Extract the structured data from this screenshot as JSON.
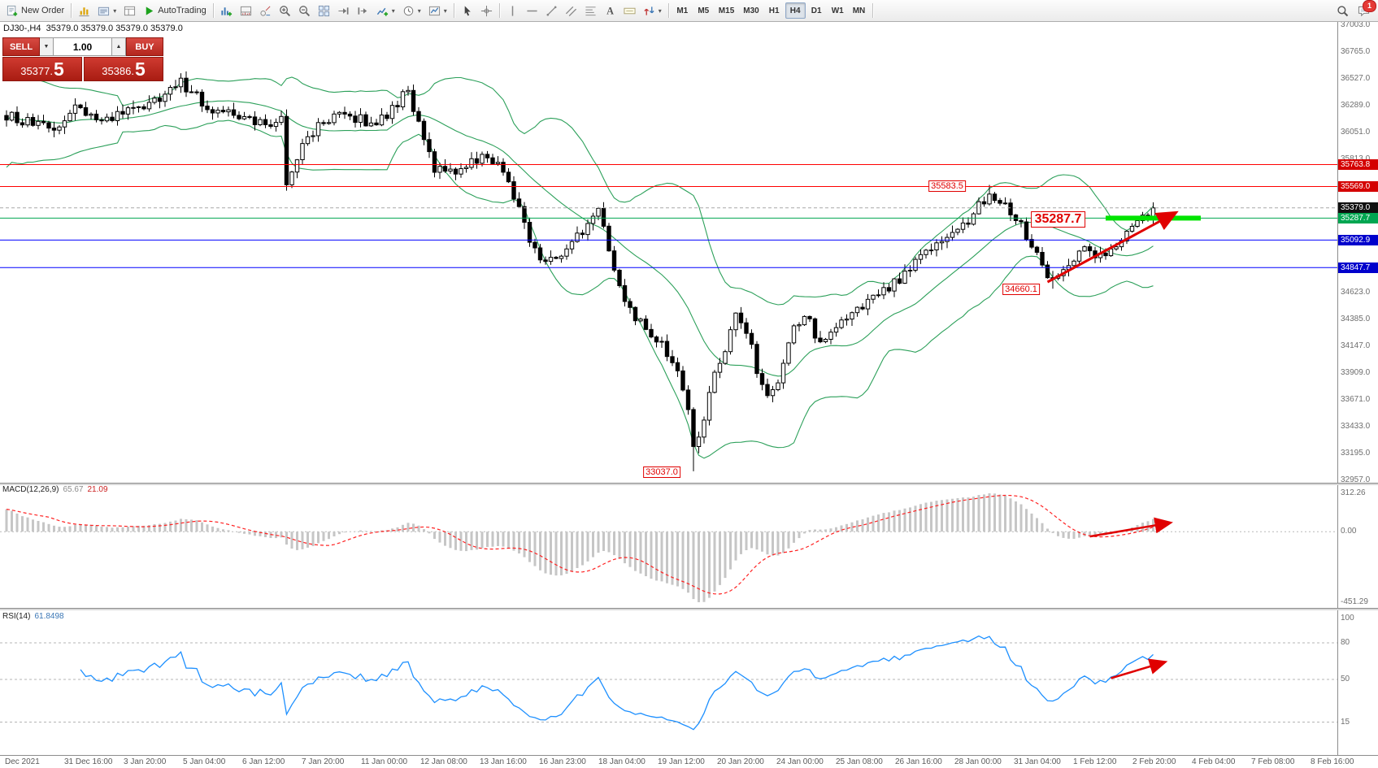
{
  "toolbar": {
    "new_order_label": "New Order",
    "autotrading_label": "AutoTrading",
    "timeframes": [
      "M1",
      "M5",
      "M15",
      "M30",
      "H1",
      "H4",
      "D1",
      "W1",
      "MN"
    ],
    "active_timeframe": "H4",
    "notification_badge": "1",
    "items": [
      {
        "type": "button",
        "name": "new-order",
        "icon": "new-order",
        "label": "New Order"
      },
      {
        "type": "sep"
      },
      {
        "type": "icon",
        "name": "new-chart",
        "icon": "new-chart"
      },
      {
        "type": "icon",
        "name": "profiles",
        "icon": "profiles",
        "dropdown": true
      },
      {
        "type": "icon",
        "name": "data-window",
        "icon": "data-window"
      },
      {
        "type": "button",
        "name": "autotrading",
        "icon": "autotrading",
        "label": "AutoTrading"
      },
      {
        "type": "sep"
      },
      {
        "type": "icon",
        "name": "indicators",
        "icon": "indicators"
      },
      {
        "type": "icon",
        "name": "indicator-windows",
        "icon": "indicator-windows"
      },
      {
        "type": "icon",
        "name": "objects-list",
        "icon": "objects"
      },
      {
        "type": "icon",
        "name": "zoom-in",
        "icon": "zoom-in"
      },
      {
        "type": "icon",
        "name": "zoom-out",
        "icon": "zoom-out"
      },
      {
        "type": "icon",
        "name": "tile-windows",
        "icon": "tile-windows"
      },
      {
        "type": "icon",
        "name": "auto-scroll",
        "icon": "auto-scroll"
      },
      {
        "type": "icon",
        "name": "chart-shift",
        "icon": "chart-shift"
      },
      {
        "type": "icon",
        "name": "new-chart-plus",
        "icon": "new-chart-plus",
        "dropdown": true
      },
      {
        "type": "icon",
        "name": "periods",
        "icon": "clock",
        "dropdown": true
      },
      {
        "type": "icon",
        "name": "templates",
        "icon": "template",
        "dropdown": true
      },
      {
        "type": "sep"
      },
      {
        "type": "icon",
        "name": "cursor",
        "icon": "cursor"
      },
      {
        "type": "icon",
        "name": "crosshair",
        "icon": "crosshair"
      },
      {
        "type": "sep"
      },
      {
        "type": "icon",
        "name": "vertical-line",
        "icon": "vline"
      },
      {
        "type": "icon",
        "name": "horizontal-line",
        "icon": "hline"
      },
      {
        "type": "icon",
        "name": "trendline",
        "icon": "trendline"
      },
      {
        "type": "icon",
        "name": "equidistant-channel",
        "icon": "channel"
      },
      {
        "type": "icon",
        "name": "fibonacci",
        "icon": "fibo"
      },
      {
        "type": "icon",
        "name": "text",
        "icon": "text"
      },
      {
        "type": "icon",
        "name": "text-label",
        "icon": "label"
      },
      {
        "type": "icon",
        "name": "arrows",
        "icon": "arrows",
        "dropdown": true
      },
      {
        "type": "sep"
      },
      {
        "type": "timeframes"
      },
      {
        "type": "sep"
      }
    ],
    "right": [
      {
        "name": "search",
        "icon": "search"
      },
      {
        "name": "chat",
        "icon": "chat",
        "badge": "1"
      }
    ]
  },
  "chart": {
    "symbol_period": "DJ30-,H4",
    "ohlc": "35379.0 35379.0 35379.0 35379.0"
  },
  "trade_panel": {
    "sell_label": "SELL",
    "buy_label": "BUY",
    "volume": "1.00",
    "sell_price": "35377.",
    "sell_price_big": "5",
    "buy_price": "35386.",
    "buy_price_big": "5"
  },
  "chart_data": {
    "type": "candlestick",
    "symbol": "DJ30-",
    "timeframe": "H4",
    "bars": 218,
    "current_price": 35379.0,
    "price_axis": {
      "top_price": 37003.0,
      "bottom_price": 32957.0,
      "labels": [
        37003.0,
        36765.0,
        36527.0,
        36289.0,
        36051.0,
        35813.0,
        34623.0,
        34385.0,
        34147.0,
        33909.0,
        33671.0,
        33433.0,
        33195.0,
        32957.0
      ]
    },
    "price_lines": [
      {
        "price": 35763.8,
        "label": "35763.8",
        "color": "#ff0000",
        "badge": "#d40000",
        "style": "solid"
      },
      {
        "price": 35569.0,
        "label": "35569.0",
        "color": "#ff0000",
        "badge": "#d40000",
        "style": "solid"
      },
      {
        "price": 35379.0,
        "label": "35379.0",
        "color": "#a8a8a8",
        "badge": "#101010",
        "style": "dashed"
      },
      {
        "price": 35287.7,
        "label": "35287.7",
        "color": "#00a651",
        "badge": "#00a651",
        "style": "solid"
      },
      {
        "price": 35092.9,
        "label": "35092.9",
        "color": "#0000ff",
        "badge": "#0000cc",
        "style": "solid"
      },
      {
        "price": 34847.7,
        "label": "34847.7",
        "color": "#0000ff",
        "badge": "#0000cc",
        "style": "solid"
      }
    ],
    "price_path": [
      [
        0,
        36200
      ],
      [
        5,
        36120
      ],
      [
        9,
        36060
      ],
      [
        13,
        36280
      ],
      [
        18,
        36130
      ],
      [
        24,
        36260
      ],
      [
        28,
        36310
      ],
      [
        33,
        36500
      ],
      [
        38,
        36280
      ],
      [
        43,
        36200
      ],
      [
        48,
        36120
      ],
      [
        52,
        36180
      ],
      [
        53,
        35620
      ],
      [
        56,
        35950
      ],
      [
        60,
        36150
      ],
      [
        64,
        36200
      ],
      [
        70,
        36130
      ],
      [
        74,
        36300
      ],
      [
        76,
        36430
      ],
      [
        79,
        35940
      ],
      [
        81,
        35730
      ],
      [
        85,
        35720
      ],
      [
        90,
        35830
      ],
      [
        93,
        35760
      ],
      [
        96,
        35500
      ],
      [
        100,
        34980
      ],
      [
        104,
        34900
      ],
      [
        108,
        35120
      ],
      [
        112,
        35340
      ],
      [
        115,
        34850
      ],
      [
        118,
        34450
      ],
      [
        121,
        34300
      ],
      [
        124,
        34150
      ],
      [
        127,
        33950
      ],
      [
        129,
        33600
      ],
      [
        130,
        33250
      ],
      [
        132,
        33500
      ],
      [
        134,
        33900
      ],
      [
        136,
        34100
      ],
      [
        138,
        34400
      ],
      [
        140,
        34300
      ],
      [
        142,
        33950
      ],
      [
        144,
        33700
      ],
      [
        146,
        33800
      ],
      [
        148,
        34200
      ],
      [
        151,
        34450
      ],
      [
        154,
        34150
      ],
      [
        157,
        34300
      ],
      [
        160,
        34450
      ],
      [
        163,
        34550
      ],
      [
        166,
        34650
      ],
      [
        169,
        34750
      ],
      [
        172,
        34900
      ],
      [
        175,
        35000
      ],
      [
        178,
        35150
      ],
      [
        181,
        35220
      ],
      [
        184,
        35400
      ],
      [
        186,
        35520
      ],
      [
        189,
        35430
      ],
      [
        192,
        35230
      ],
      [
        195,
        34950
      ],
      [
        198,
        34720
      ],
      [
        201,
        34900
      ],
      [
        204,
        35020
      ],
      [
        207,
        34950
      ],
      [
        210,
        35080
      ],
      [
        213,
        35200
      ],
      [
        217,
        35379
      ]
    ],
    "anchors": [
      {
        "bar": 130,
        "field": "low",
        "value": 33037.0
      },
      {
        "bar": 186,
        "field": "high",
        "value": 35583.5
      },
      {
        "bar": 198,
        "field": "low",
        "value": 34660.1
      },
      {
        "bar": 217,
        "field": "close",
        "value": 35379.0
      }
    ],
    "annotations": {
      "labels": [
        {
          "text": "35583.5",
          "bar": 178,
          "price": 35575,
          "size": "small"
        },
        {
          "text": "35287.7",
          "bar": 199,
          "price": 35278,
          "size": "large"
        },
        {
          "text": "34660.1",
          "bar": 192,
          "price": 34652,
          "size": "small"
        },
        {
          "text": "33037.0",
          "bar": 124,
          "price": 33032,
          "size": "small"
        }
      ],
      "trend_arrow": {
        "from_bar": 197,
        "from_price": 34720,
        "to_bar": 221,
        "to_price": 35330
      },
      "macd_arrow": {
        "from_bar": 205,
        "from_value": -30,
        "to_bar": 220,
        "to_value": 55
      },
      "rsi_arrow": {
        "from_bar": 209,
        "from_value": 51,
        "to_bar": 219,
        "to_value": 64
      },
      "resistance_bar": {
        "from_bar": 208,
        "to_bar": 226,
        "price": 35287.7,
        "color": "#00e400"
      }
    },
    "indicators": {
      "bollinger": {
        "period": 20,
        "deviation": 2,
        "color": "#2ca05a"
      },
      "macd": {
        "label": "MACD(12,26,9)",
        "value_main": "65.67",
        "value_signal": "21.09",
        "axis_max": "312.26",
        "axis_zero": "0.00",
        "axis_min": "-451.29",
        "histogram_color": "#c6c6c6",
        "signal_color": "#ff2020"
      },
      "rsi": {
        "label": "RSI(14)",
        "value": "61.8498",
        "color": "#1e90ff",
        "axis_labels": [
          100,
          80,
          50,
          15
        ],
        "levels": [
          80,
          50,
          15
        ]
      }
    },
    "time_axis": [
      "Dec 2021",
      "31 Dec 16:00",
      "3 Jan 20:00",
      "5 Jan 04:00",
      "6 Jan 12:00",
      "7 Jan 20:00",
      "11 Jan 00:00",
      "12 Jan 08:00",
      "13 Jan 16:00",
      "16 Jan 23:00",
      "18 Jan 04:00",
      "19 Jan 12:00",
      "20 Jan 20:00",
      "24 Jan 00:00",
      "25 Jan 08:00",
      "26 Jan 16:00",
      "28 Jan 00:00",
      "31 Jan 04:00",
      "1 Feb 12:00",
      "2 Feb 20:00",
      "4 Feb 04:00",
      "7 Feb 08:00",
      "8 Feb 16:00"
    ]
  }
}
